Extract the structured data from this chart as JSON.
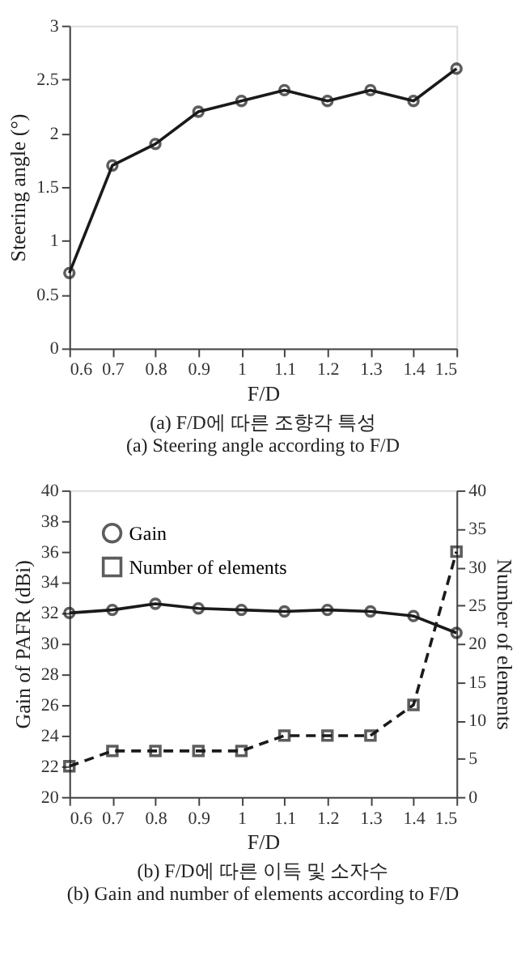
{
  "chart_data": [
    {
      "type": "line",
      "xlabel": "F/D",
      "ylabel": "Steering angle (°)",
      "x": [
        0.6,
        0.7,
        0.8,
        0.9,
        1,
        1.1,
        1.2,
        1.3,
        1.4,
        1.5
      ],
      "series": [
        {
          "color": "#1a1a1a",
          "values": [
            0.7,
            1.7,
            1.9,
            2.2,
            2.3,
            2.4,
            2.3,
            2.4,
            2.3,
            2.6
          ]
        }
      ],
      "xlim": [
        0.6,
        1.5
      ],
      "xticks": [
        0.6,
        0.7,
        0.8,
        0.9,
        1,
        1.1,
        1.2,
        1.3,
        1.4,
        1.5
      ],
      "ylim": [
        0,
        3
      ],
      "yticks": [
        0,
        0.5,
        1,
        1.5,
        2,
        2.5,
        3
      ],
      "marker": "circle",
      "line_style": "solid",
      "grid": false,
      "legend": false,
      "annotations": [
        "(a) F/D에 따른 조향각 특성",
        "(a) Steering angle according to F/D"
      ]
    },
    {
      "type": "line",
      "xlabel": "F/D",
      "ylabel": "Gain of PAFR (dBi)",
      "y2label": "Number of elements",
      "x": [
        0.6,
        0.7,
        0.8,
        0.9,
        1,
        1.1,
        1.2,
        1.3,
        1.4,
        1.5
      ],
      "series": [
        {
          "name": "Gain",
          "color": "#1a1a1a",
          "marker": "circle",
          "line_style": "solid",
          "values": [
            32,
            32.2,
            32.6,
            32.3,
            32.2,
            32.1,
            32.2,
            32.1,
            31.8,
            30.7
          ]
        },
        {
          "name": "Number of elements",
          "color": "#1a1a1a",
          "marker": "square",
          "line_style": "dashed",
          "axis": "y2",
          "values": [
            4,
            6,
            6,
            6,
            6,
            8,
            8,
            8,
            12,
            32
          ]
        }
      ],
      "xlim": [
        0.6,
        1.5
      ],
      "xticks": [
        0.6,
        0.7,
        0.8,
        0.9,
        1,
        1.1,
        1.2,
        1.3,
        1.4,
        1.5
      ],
      "ylim": [
        20,
        40
      ],
      "yticks": [
        20,
        22,
        24,
        26,
        28,
        30,
        32,
        34,
        36,
        38,
        40
      ],
      "y2lim": [
        0,
        40
      ],
      "y2ticks": [
        0,
        5,
        10,
        15,
        20,
        25,
        30,
        35,
        40
      ],
      "grid": false,
      "legend": "top left",
      "annotations": [
        "(b) F/D에 따른 이득 및 소자수",
        "(b) Gain and number of elements according to F/D"
      ]
    }
  ]
}
